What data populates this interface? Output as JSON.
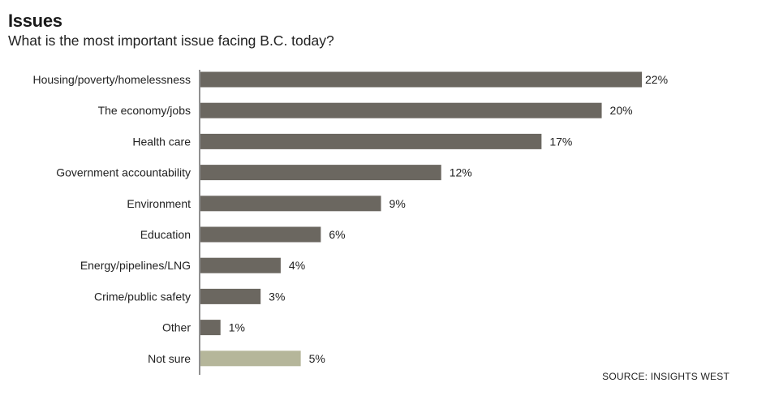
{
  "header": {
    "title": "Issues",
    "subtitle": "What is the most important issue facing B.C. today?"
  },
  "footer": {
    "source": "SOURCE: INSIGHTS WEST"
  },
  "colors": {
    "bar": "#6b6760",
    "highlight_bar": "#b5b69a",
    "axis": "#222222"
  },
  "chart_data": {
    "type": "bar",
    "orientation": "horizontal",
    "title": "Issues",
    "subtitle": "What is the most important issue facing B.C. today?",
    "categories": [
      "Housing/poverty/homelessness",
      "The economy/jobs",
      "Health care",
      "Government accountability",
      "Environment",
      "Education",
      "Energy/pipelines/LNG",
      "Crime/public safety",
      "Other",
      "Not sure"
    ],
    "values": [
      22,
      20,
      17,
      12,
      9,
      6,
      4,
      3,
      1,
      5
    ],
    "value_labels": [
      "22%",
      "20%",
      "17%",
      "12%",
      "9%",
      "6%",
      "4%",
      "3%",
      "1%",
      "5%"
    ],
    "unit": "%",
    "xlim": [
      0,
      22
    ],
    "grid": false,
    "legend": "none",
    "highlight_categories": [
      "Not sure"
    ],
    "source": "SOURCE: INSIGHTS WEST"
  }
}
